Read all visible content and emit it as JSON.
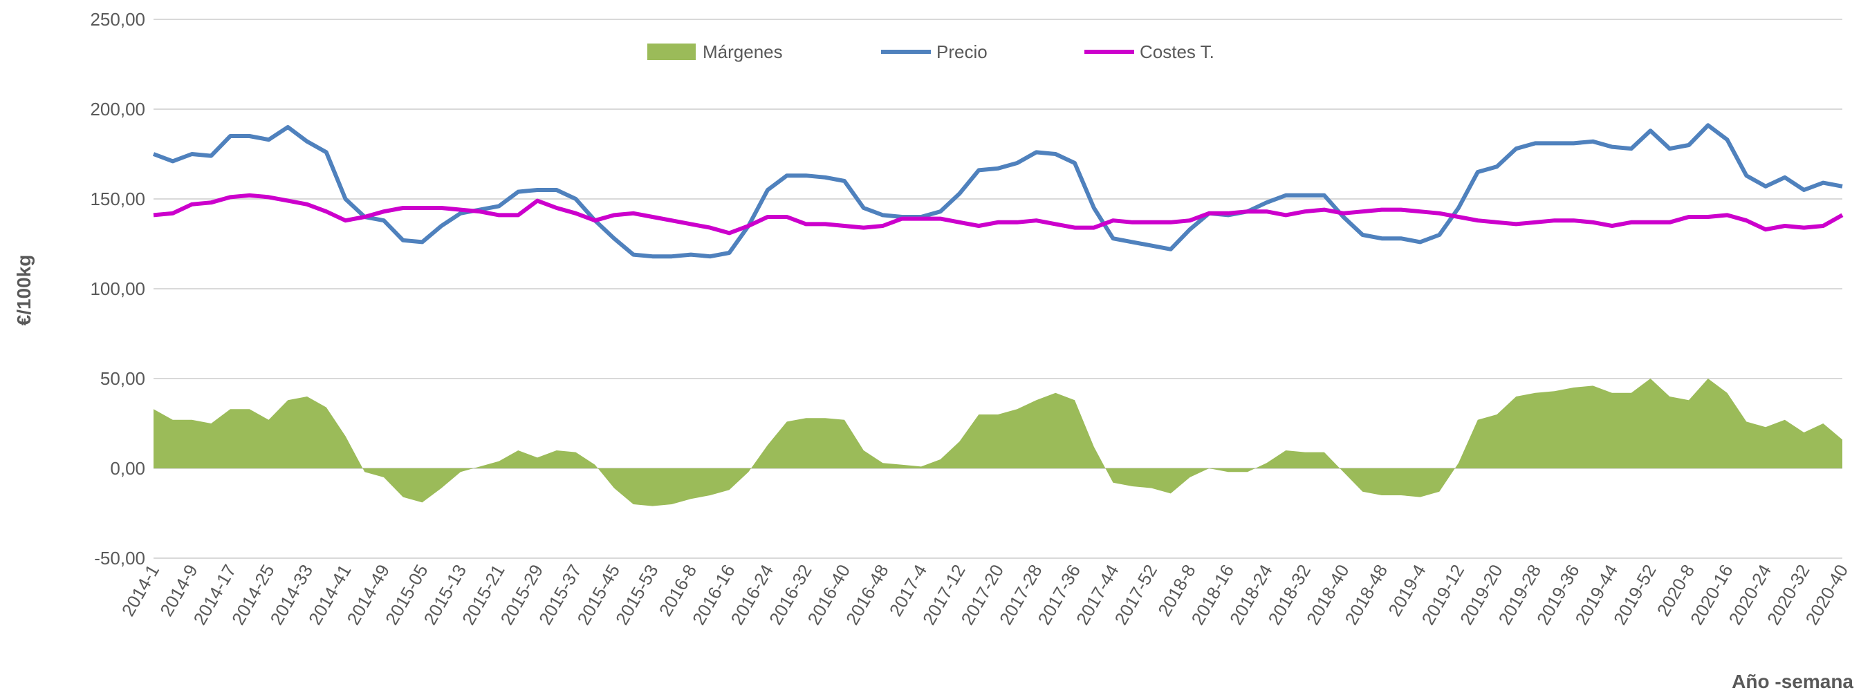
{
  "chart_data": {
    "type": "line",
    "y_label": "€/100kg",
    "x_label": "Año -semana",
    "categories": [
      "2014-1",
      null,
      "2014-9",
      null,
      "2014-17",
      null,
      "2014-25",
      null,
      "2014-33",
      null,
      "2014-41",
      null,
      "2014-49",
      null,
      "2015-05",
      null,
      "2015-13",
      null,
      "2015-21",
      null,
      "2015-29",
      null,
      "2015-37",
      null,
      "2015-45",
      null,
      "2015-53",
      null,
      "2016-8",
      null,
      "2016-16",
      null,
      "2016-24",
      null,
      "2016-32",
      null,
      "2016-40",
      null,
      "2016-48",
      null,
      "2017-4",
      null,
      "2017-12",
      null,
      "2017-20",
      null,
      "2017-28",
      null,
      "2017-36",
      null,
      "2017-44",
      null,
      "2017-52",
      null,
      "2018-8",
      null,
      "2018-16",
      null,
      "2018-24",
      null,
      "2018-32",
      null,
      "2018-40",
      null,
      "2018-48",
      null,
      "2019-4",
      null,
      "2019-12",
      null,
      "2019-20",
      null,
      "2019-28",
      null,
      "2019-36",
      null,
      "2019-44",
      null,
      "2019-52",
      null,
      "2020-8",
      null,
      "2020-16",
      null,
      "2020-24",
      null,
      "2020-32",
      null,
      "2020-40"
    ],
    "series": [
      {
        "name": "Márgenes",
        "type": "area",
        "color": "#9bbb59",
        "values": [
          33,
          27,
          27,
          25,
          33,
          33,
          27,
          38,
          40,
          34,
          18,
          -2,
          -5,
          -16,
          -19,
          -11,
          -2,
          1,
          4,
          10,
          6,
          10,
          9,
          2,
          -11,
          -20,
          -21,
          -20,
          -17,
          -15,
          -12,
          -2,
          13,
          26,
          28,
          28,
          27,
          10,
          3,
          2,
          1,
          5,
          15,
          30,
          30,
          33,
          38,
          42,
          38,
          12,
          -8,
          -10,
          -11,
          -14,
          -5,
          0,
          -2,
          -2,
          3,
          10,
          9,
          9,
          -2,
          -13,
          -15,
          -15,
          -16,
          -13,
          3,
          27,
          30,
          40,
          42,
          43,
          45,
          46,
          42,
          42,
          50,
          40,
          38,
          50,
          42,
          26,
          23,
          27,
          20,
          25,
          16
        ]
      },
      {
        "name": "Precio",
        "type": "line",
        "color": "#4f81bd",
        "values": [
          175,
          171,
          175,
          174,
          185,
          185,
          183,
          190,
          182,
          176,
          150,
          140,
          138,
          127,
          126,
          135,
          142,
          144,
          146,
          154,
          155,
          155,
          150,
          138,
          128,
          119,
          118,
          118,
          119,
          118,
          120,
          135,
          155,
          163,
          163,
          162,
          160,
          145,
          141,
          140,
          140,
          143,
          153,
          166,
          167,
          170,
          176,
          175,
          170,
          145,
          128,
          126,
          124,
          122,
          133,
          142,
          141,
          143,
          148,
          152,
          152,
          152,
          140,
          130,
          128,
          128,
          126,
          130,
          145,
          165,
          168,
          178,
          181,
          181,
          181,
          182,
          179,
          178,
          188,
          178,
          180,
          191,
          183,
          163,
          157,
          162,
          155,
          159,
          157
        ]
      },
      {
        "name": "Costes T.",
        "type": "line",
        "color": "#cc00cc",
        "values": [
          141,
          142,
          147,
          148,
          151,
          152,
          151,
          149,
          147,
          143,
          138,
          140,
          143,
          145,
          145,
          145,
          144,
          143,
          141,
          141,
          149,
          145,
          142,
          138,
          141,
          142,
          140,
          138,
          136,
          134,
          131,
          135,
          140,
          140,
          136,
          136,
          135,
          134,
          135,
          139,
          139,
          139,
          137,
          135,
          137,
          137,
          138,
          136,
          134,
          134,
          138,
          137,
          137,
          137,
          138,
          142,
          142,
          143,
          143,
          141,
          143,
          144,
          142,
          143,
          144,
          144,
          143,
          142,
          140,
          138,
          137,
          136,
          137,
          138,
          138,
          137,
          135,
          137,
          137,
          137,
          140,
          140,
          141,
          138,
          133,
          135,
          134,
          135,
          141
        ]
      }
    ],
    "ylim": [
      -50,
      250
    ],
    "yticks": [
      {
        "value": -50,
        "label": "-50,00"
      },
      {
        "value": 0,
        "label": "0,00"
      },
      {
        "value": 50,
        "label": "50,00"
      },
      {
        "value": 100,
        "label": "100,00"
      },
      {
        "value": 150,
        "label": "150,00"
      },
      {
        "value": 200,
        "label": "200,00"
      },
      {
        "value": 250,
        "label": "250,00"
      }
    ],
    "grid": true,
    "legend": "top"
  }
}
